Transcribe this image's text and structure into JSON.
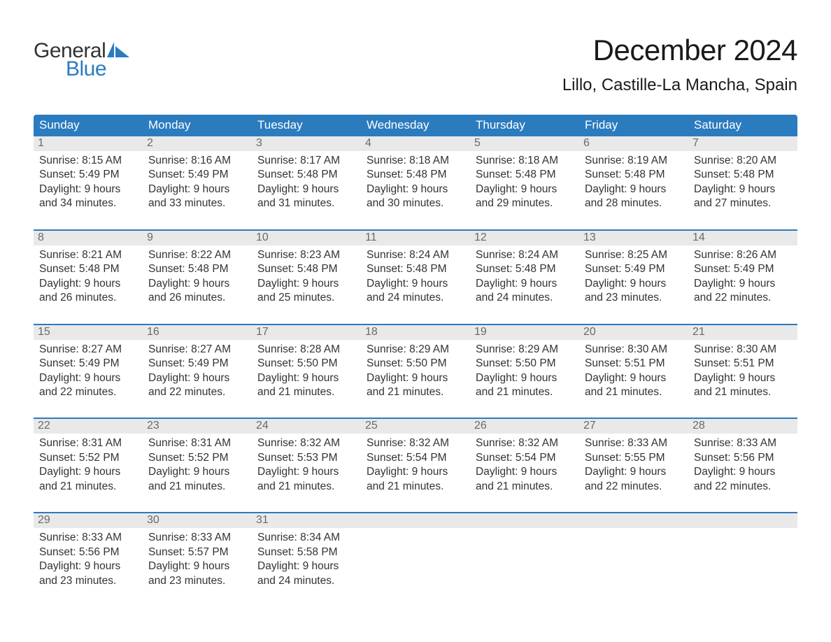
{
  "brand": {
    "general": "General",
    "blue": "Blue"
  },
  "title": "December 2024",
  "location": "Lillo, Castille-La Mancha, Spain",
  "colors": {
    "header_bg": "#2b7bbf",
    "header_text": "#ffffff",
    "daynum_bg": "#e9e9e9",
    "daynum_text": "#6a6a6a",
    "body_text": "#333333",
    "rule": "#2b7bbf",
    "page_bg": "#ffffff",
    "logo_blue": "#2b7bbf"
  },
  "typography": {
    "title_fontsize": 42,
    "location_fontsize": 24,
    "weekday_fontsize": 17,
    "daynum_fontsize": 16,
    "body_fontsize": 15.5
  },
  "layout": {
    "columns": 7,
    "rows": 5,
    "cell_vpad_bottom": 26
  },
  "weekdays": [
    "Sunday",
    "Monday",
    "Tuesday",
    "Wednesday",
    "Thursday",
    "Friday",
    "Saturday"
  ],
  "days": [
    {
      "n": "1",
      "sr": "8:15 AM",
      "ss": "5:49 PM",
      "dl": "9 hours and 34 minutes."
    },
    {
      "n": "2",
      "sr": "8:16 AM",
      "ss": "5:49 PM",
      "dl": "9 hours and 33 minutes."
    },
    {
      "n": "3",
      "sr": "8:17 AM",
      "ss": "5:48 PM",
      "dl": "9 hours and 31 minutes."
    },
    {
      "n": "4",
      "sr": "8:18 AM",
      "ss": "5:48 PM",
      "dl": "9 hours and 30 minutes."
    },
    {
      "n": "5",
      "sr": "8:18 AM",
      "ss": "5:48 PM",
      "dl": "9 hours and 29 minutes."
    },
    {
      "n": "6",
      "sr": "8:19 AM",
      "ss": "5:48 PM",
      "dl": "9 hours and 28 minutes."
    },
    {
      "n": "7",
      "sr": "8:20 AM",
      "ss": "5:48 PM",
      "dl": "9 hours and 27 minutes."
    },
    {
      "n": "8",
      "sr": "8:21 AM",
      "ss": "5:48 PM",
      "dl": "9 hours and 26 minutes."
    },
    {
      "n": "9",
      "sr": "8:22 AM",
      "ss": "5:48 PM",
      "dl": "9 hours and 26 minutes."
    },
    {
      "n": "10",
      "sr": "8:23 AM",
      "ss": "5:48 PM",
      "dl": "9 hours and 25 minutes."
    },
    {
      "n": "11",
      "sr": "8:24 AM",
      "ss": "5:48 PM",
      "dl": "9 hours and 24 minutes."
    },
    {
      "n": "12",
      "sr": "8:24 AM",
      "ss": "5:48 PM",
      "dl": "9 hours and 24 minutes."
    },
    {
      "n": "13",
      "sr": "8:25 AM",
      "ss": "5:49 PM",
      "dl": "9 hours and 23 minutes."
    },
    {
      "n": "14",
      "sr": "8:26 AM",
      "ss": "5:49 PM",
      "dl": "9 hours and 22 minutes."
    },
    {
      "n": "15",
      "sr": "8:27 AM",
      "ss": "5:49 PM",
      "dl": "9 hours and 22 minutes."
    },
    {
      "n": "16",
      "sr": "8:27 AM",
      "ss": "5:49 PM",
      "dl": "9 hours and 22 minutes."
    },
    {
      "n": "17",
      "sr": "8:28 AM",
      "ss": "5:50 PM",
      "dl": "9 hours and 21 minutes."
    },
    {
      "n": "18",
      "sr": "8:29 AM",
      "ss": "5:50 PM",
      "dl": "9 hours and 21 minutes."
    },
    {
      "n": "19",
      "sr": "8:29 AM",
      "ss": "5:50 PM",
      "dl": "9 hours and 21 minutes."
    },
    {
      "n": "20",
      "sr": "8:30 AM",
      "ss": "5:51 PM",
      "dl": "9 hours and 21 minutes."
    },
    {
      "n": "21",
      "sr": "8:30 AM",
      "ss": "5:51 PM",
      "dl": "9 hours and 21 minutes."
    },
    {
      "n": "22",
      "sr": "8:31 AM",
      "ss": "5:52 PM",
      "dl": "9 hours and 21 minutes."
    },
    {
      "n": "23",
      "sr": "8:31 AM",
      "ss": "5:52 PM",
      "dl": "9 hours and 21 minutes."
    },
    {
      "n": "24",
      "sr": "8:32 AM",
      "ss": "5:53 PM",
      "dl": "9 hours and 21 minutes."
    },
    {
      "n": "25",
      "sr": "8:32 AM",
      "ss": "5:54 PM",
      "dl": "9 hours and 21 minutes."
    },
    {
      "n": "26",
      "sr": "8:32 AM",
      "ss": "5:54 PM",
      "dl": "9 hours and 21 minutes."
    },
    {
      "n": "27",
      "sr": "8:33 AM",
      "ss": "5:55 PM",
      "dl": "9 hours and 22 minutes."
    },
    {
      "n": "28",
      "sr": "8:33 AM",
      "ss": "5:56 PM",
      "dl": "9 hours and 22 minutes."
    },
    {
      "n": "29",
      "sr": "8:33 AM",
      "ss": "5:56 PM",
      "dl": "9 hours and 23 minutes."
    },
    {
      "n": "30",
      "sr": "8:33 AM",
      "ss": "5:57 PM",
      "dl": "9 hours and 23 minutes."
    },
    {
      "n": "31",
      "sr": "8:34 AM",
      "ss": "5:58 PM",
      "dl": "9 hours and 24 minutes."
    }
  ],
  "labels": {
    "sunrise": "Sunrise: ",
    "sunset": "Sunset: ",
    "daylight": "Daylight: "
  }
}
